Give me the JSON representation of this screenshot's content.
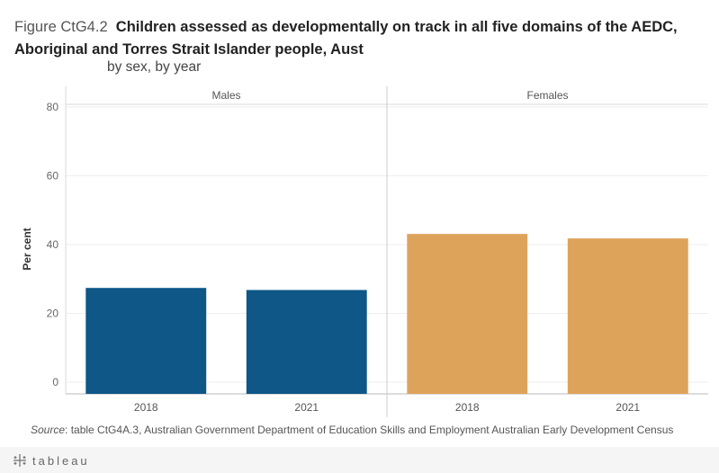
{
  "header": {
    "figure_label": "Figure CtG4.2",
    "title_line1": "Children assessed as developmentally on track in all five domains of the AEDC,",
    "title_line2": "Aboriginal and Torres Strait Islander people, Aust",
    "subtitle": "by sex, by year"
  },
  "chart_data": {
    "type": "bar",
    "ylabel": "Per cent",
    "ylim": [
      0,
      80
    ],
    "yticks": [
      0,
      20,
      40,
      60,
      80
    ],
    "grid": true,
    "panels": [
      {
        "name": "Males",
        "categories": [
          "2018",
          "2021"
        ],
        "values": [
          27.4,
          26.8
        ],
        "color": "#0e5787"
      },
      {
        "name": "Females",
        "categories": [
          "2018",
          "2021"
        ],
        "values": [
          43.1,
          41.8
        ],
        "color": "#dea35b"
      }
    ]
  },
  "source": {
    "label": "Source",
    "text": ": table CtG4A.3, Australian Government Department of Education Skills and Employment Australian Early Development Census"
  },
  "footer": {
    "brand": "tableau",
    "logo_icon": "tableau-logo-icon"
  }
}
